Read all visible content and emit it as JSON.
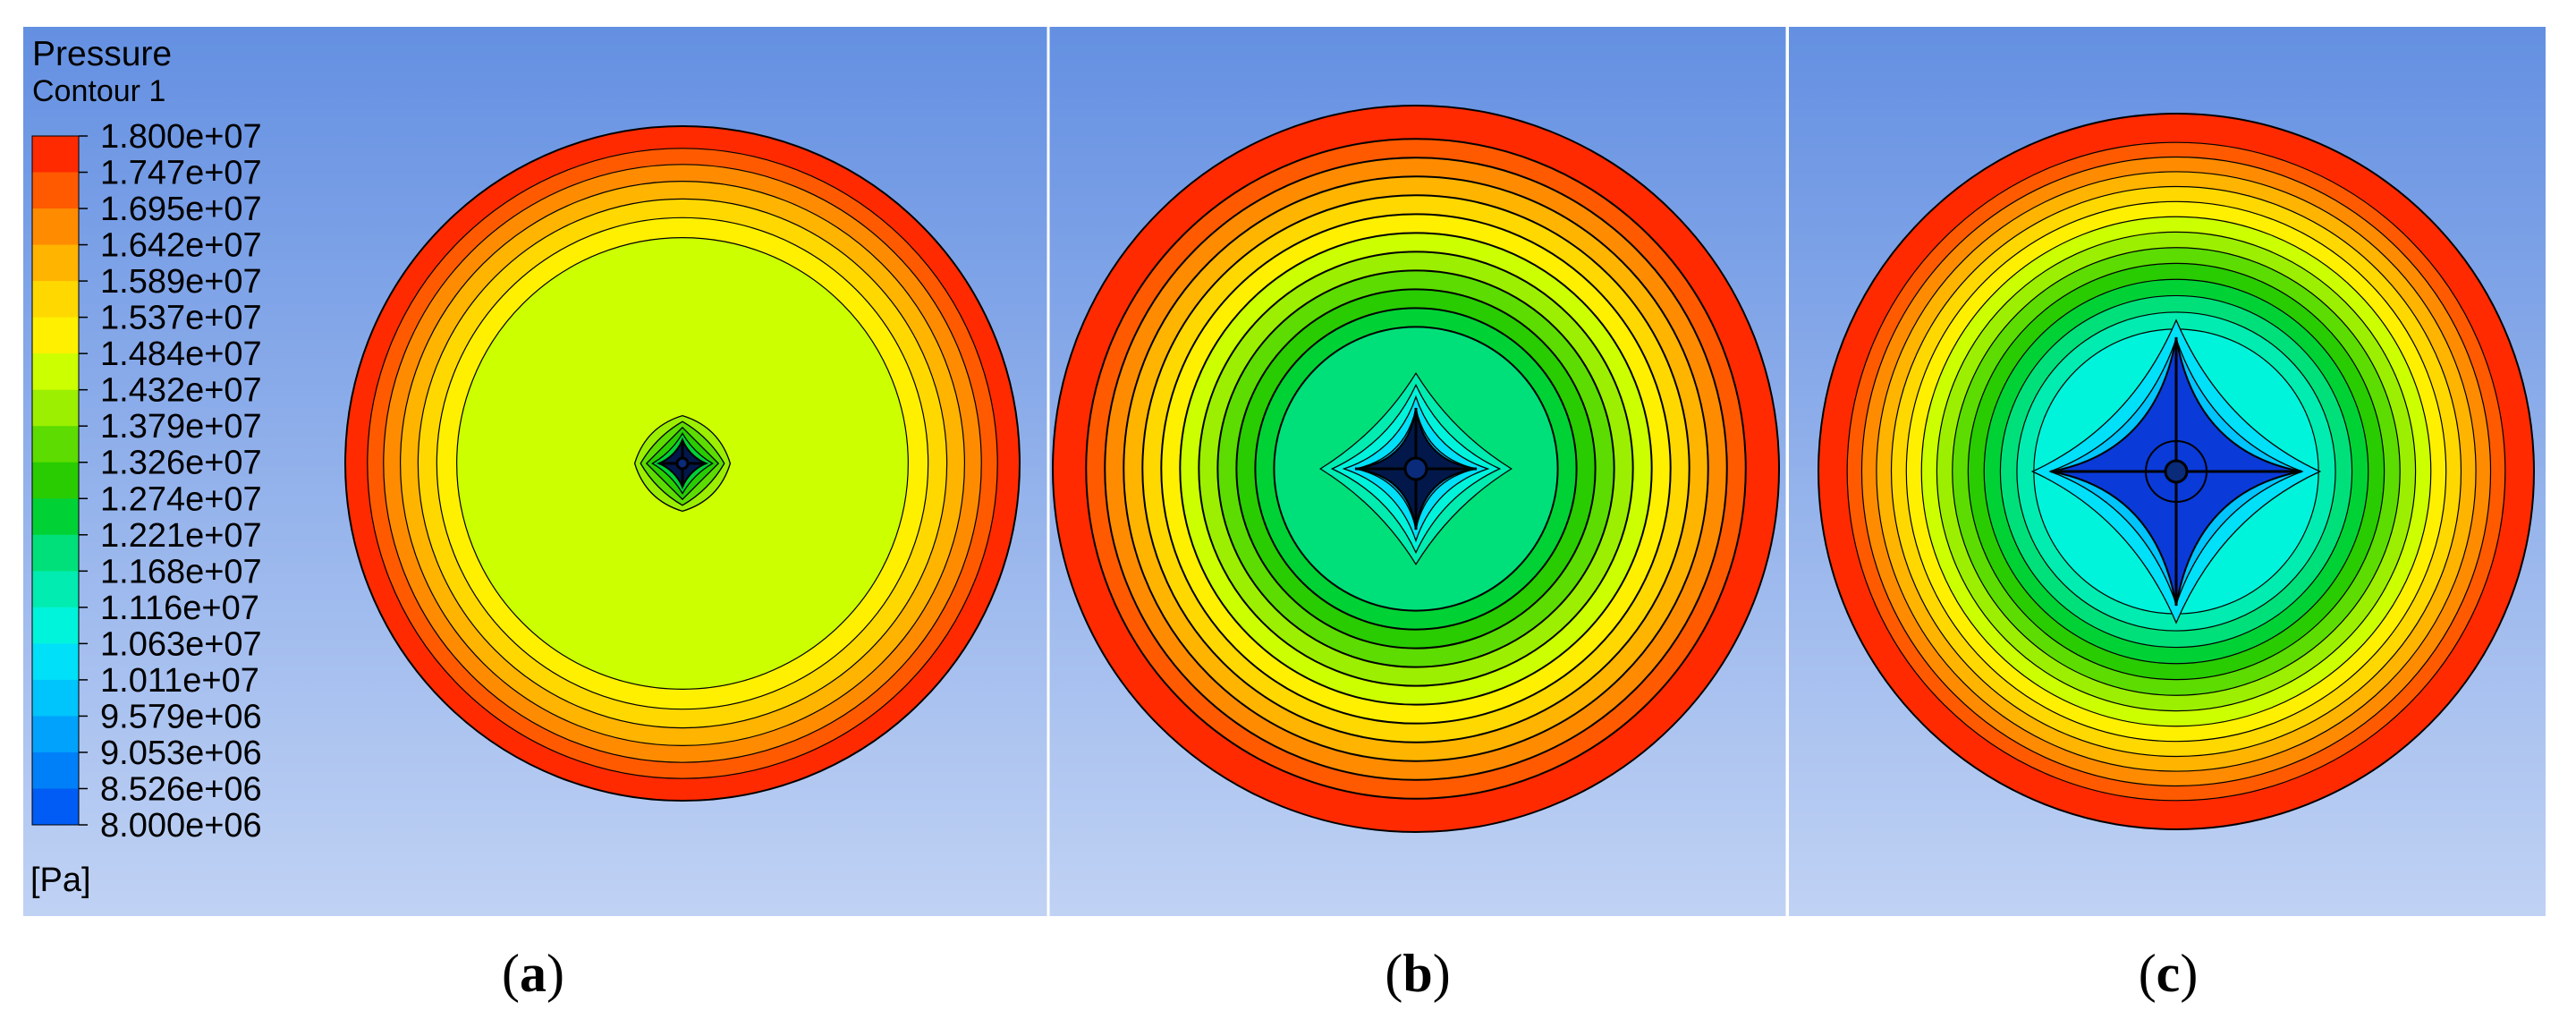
{
  "legend": {
    "title": "Pressure",
    "subtitle": "Contour 1",
    "unit": "[Pa]",
    "ticks": [
      "1.800e+07",
      "1.747e+07",
      "1.695e+07",
      "1.642e+07",
      "1.589e+07",
      "1.537e+07",
      "1.484e+07",
      "1.432e+07",
      "1.379e+07",
      "1.326e+07",
      "1.274e+07",
      "1.221e+07",
      "1.168e+07",
      "1.116e+07",
      "1.063e+07",
      "1.011e+07",
      "9.579e+06",
      "9.053e+06",
      "8.526e+06",
      "8.000e+06"
    ],
    "colors": [
      "#ff2a00",
      "#ff5a00",
      "#ff8c00",
      "#ffb400",
      "#ffd800",
      "#fff000",
      "#ccff00",
      "#9cef00",
      "#5cdc00",
      "#28cc00",
      "#00d236",
      "#00e07a",
      "#00ecb0",
      "#00f4dc",
      "#00e0f8",
      "#00c4fc",
      "#00a2fc",
      "#0080f8",
      "#005cf4",
      "#0018f0"
    ]
  },
  "panels": [
    {
      "caption_open": "(",
      "caption_letter": "a",
      "caption_close": ")",
      "min_level": 11,
      "star": "small"
    },
    {
      "caption_open": "(",
      "caption_letter": "b",
      "caption_close": ")",
      "min_level": 16,
      "star": "medium"
    },
    {
      "caption_open": "(",
      "caption_letter": "c",
      "caption_close": ")",
      "min_level": 18,
      "star": "large"
    }
  ]
}
